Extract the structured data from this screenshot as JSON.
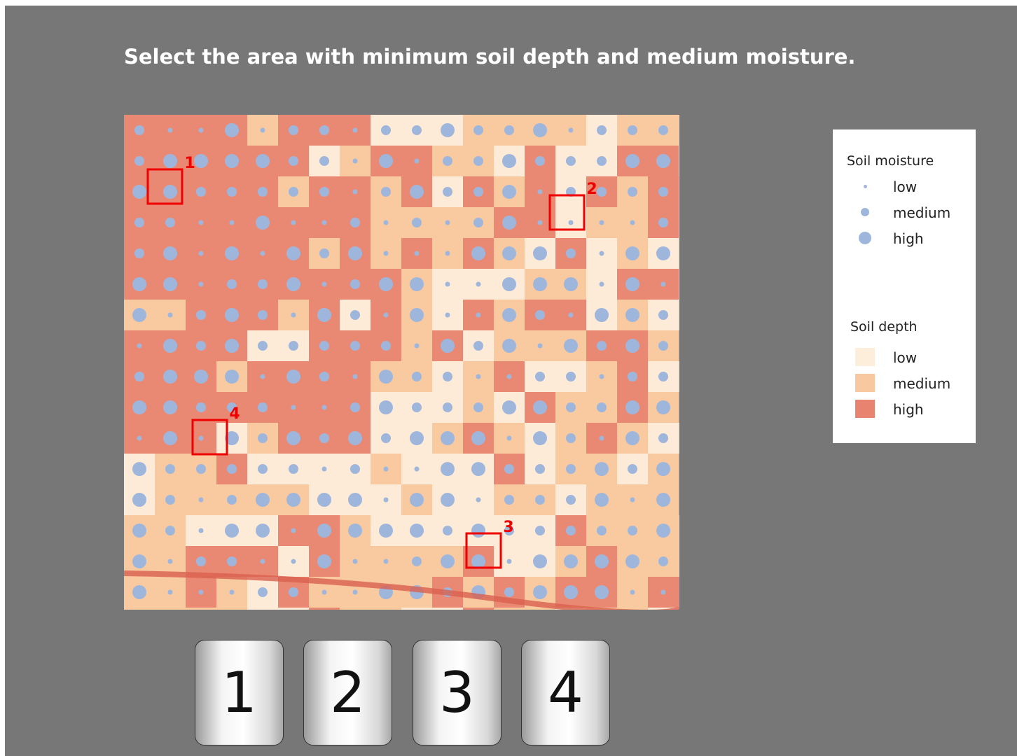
{
  "question": "Select the area with minimum soil depth and medium moisture.",
  "legend": {
    "moisture": {
      "title": "Soil moisture",
      "color": "#9fb6dc",
      "items": [
        {
          "label": "low"
        },
        {
          "label": "medium"
        },
        {
          "label": "high"
        }
      ]
    },
    "depth": {
      "title": "Soil depth",
      "items": [
        {
          "label": "low",
          "color": "#fdeedb"
        },
        {
          "label": "medium",
          "color": "#f8c9a0"
        },
        {
          "label": "high",
          "color": "#e8836f"
        }
      ]
    }
  },
  "map": {
    "areas": [
      {
        "label": "1"
      },
      {
        "label": "2"
      },
      {
        "label": "3"
      },
      {
        "label": "4"
      }
    ]
  },
  "buttons": [
    "1",
    "2",
    "3",
    "4"
  ]
}
